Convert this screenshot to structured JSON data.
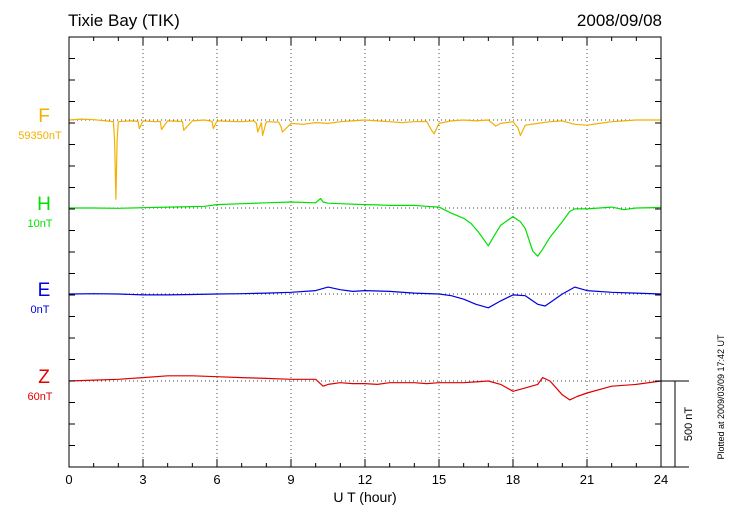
{
  "header": {
    "station": "Tixie Bay (TIK)",
    "date": "2008/09/08"
  },
  "footer": {
    "plotted_note": "Plotted at 2009/03/09 17:42 UT"
  },
  "scale_bar": {
    "label": "500 nT",
    "nT": 500
  },
  "chart_data": {
    "type": "line",
    "xlabel": "U T (hour)",
    "xlim": [
      0,
      24
    ],
    "xticks": [
      "0",
      "3",
      "6",
      "9",
      "12",
      "15",
      "18",
      "21",
      "24"
    ],
    "grid": true,
    "y_unit": "nT",
    "series": [
      {
        "name": "F",
        "baseline_label": "59350nT",
        "color": "#f4b000",
        "x": [
          0,
          0.5,
          1,
          1.5,
          1.8,
          1.85,
          1.9,
          1.95,
          2.0,
          2.5,
          2.8,
          2.85,
          3,
          3.5,
          3.7,
          3.75,
          4,
          4.5,
          4.6,
          4.65,
          5,
          5.5,
          5.8,
          5.85,
          6,
          6.5,
          7,
          7.5,
          7.6,
          7.65,
          7.8,
          7.85,
          8,
          8.5,
          8.6,
          8.65,
          9,
          9.5,
          10,
          10.5,
          11,
          11.5,
          12,
          12.5,
          13,
          13.5,
          14,
          14.5,
          14.7,
          14.8,
          15,
          15.5,
          16,
          16.5,
          17,
          17.3,
          17.5,
          18,
          18.2,
          18.3,
          18.5,
          19,
          19.5,
          20,
          20.5,
          21,
          21.5,
          22,
          22.5,
          23,
          23.5,
          24
        ],
        "values": [
          0,
          5,
          2,
          -5,
          -10,
          -120,
          -460,
          -120,
          -10,
          -5,
          -8,
          -50,
          -5,
          -10,
          -8,
          -55,
          -5,
          -8,
          -10,
          -60,
          -5,
          0,
          -8,
          -50,
          -5,
          -8,
          -10,
          -5,
          -20,
          -70,
          -15,
          -90,
          -10,
          -12,
          -40,
          -70,
          -20,
          -25,
          -15,
          -20,
          -10,
          -5,
          0,
          -5,
          -10,
          -15,
          -10,
          -8,
          -60,
          -80,
          -20,
          -5,
          0,
          -5,
          0,
          -35,
          -20,
          -10,
          -45,
          -90,
          -30,
          -20,
          -10,
          -5,
          -25,
          -30,
          -20,
          -10,
          -5,
          0,
          0,
          0
        ]
      },
      {
        "name": "H",
        "baseline_label": "10nT",
        "color": "#00e000",
        "x": [
          0,
          1,
          2,
          3,
          4,
          5,
          5.5,
          6,
          7,
          8,
          9,
          10,
          10.2,
          10.3,
          10.5,
          11,
          12,
          12.5,
          13,
          14,
          14.5,
          15,
          15.5,
          16,
          16.3,
          16.6,
          17,
          17.2,
          17.5,
          18,
          18.3,
          18.5,
          18.8,
          19,
          19.2,
          19.5,
          20,
          20.3,
          20.5,
          21,
          22,
          22.5,
          23,
          24
        ],
        "values": [
          0,
          0,
          -2,
          2,
          5,
          8,
          10,
          20,
          25,
          30,
          35,
          30,
          55,
          35,
          28,
          25,
          20,
          18,
          15,
          15,
          10,
          5,
          -30,
          -60,
          -90,
          -140,
          -220,
          -170,
          -100,
          -50,
          -80,
          -120,
          -250,
          -280,
          -240,
          -170,
          -80,
          -20,
          -5,
          -5,
          5,
          -10,
          0,
          3
        ]
      },
      {
        "name": "E",
        "baseline_label": "0nT",
        "color": "#0000e0",
        "x": [
          0,
          1,
          2,
          3,
          4,
          5,
          6,
          7,
          8,
          9,
          10,
          10.5,
          11,
          11.5,
          12,
          13,
          14,
          15,
          15.5,
          16,
          16.5,
          17,
          17.5,
          18,
          18.5,
          19,
          19.3,
          19.6,
          20,
          20.5,
          21,
          22,
          23,
          24
        ],
        "values": [
          0,
          2,
          0,
          -5,
          -5,
          -3,
          0,
          2,
          5,
          10,
          20,
          40,
          25,
          15,
          20,
          15,
          5,
          0,
          -10,
          -30,
          -60,
          -80,
          -40,
          -5,
          -10,
          -60,
          -70,
          -40,
          0,
          40,
          20,
          10,
          5,
          0
        ]
      },
      {
        "name": "Z",
        "baseline_label": "60nT",
        "color": "#e00000",
        "x": [
          0,
          1,
          2,
          3,
          4,
          5,
          6,
          7,
          8,
          9,
          10,
          10.3,
          10.5,
          11,
          11.5,
          12,
          12.5,
          13,
          14,
          14.5,
          15,
          16,
          16.5,
          17,
          17.5,
          18,
          18.5,
          19,
          19.2,
          19.5,
          20,
          20.3,
          20.6,
          21,
          22,
          23,
          24
        ],
        "values": [
          0,
          5,
          10,
          20,
          30,
          30,
          25,
          20,
          15,
          10,
          10,
          -30,
          -20,
          -10,
          -15,
          -15,
          -20,
          -10,
          -10,
          -15,
          -10,
          -10,
          -5,
          0,
          -20,
          -60,
          -40,
          -20,
          20,
          0,
          -80,
          -110,
          -90,
          -70,
          -30,
          -20,
          0
        ]
      }
    ]
  }
}
